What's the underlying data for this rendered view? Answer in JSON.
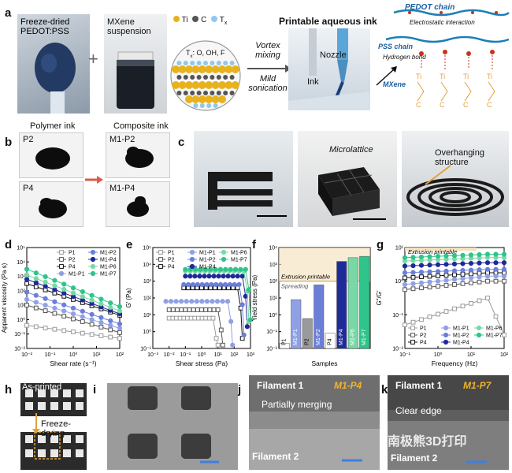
{
  "panel_labels": {
    "a": "a",
    "b": "b",
    "c": "c",
    "d": "d",
    "e": "e",
    "f": "f",
    "g": "g",
    "h": "h",
    "i": "i",
    "j": "j",
    "k": "k"
  },
  "panel_a": {
    "pedot_label": "Freeze-dried\nPEDOT:PSS",
    "plus": "+",
    "mxene_label": "MXene\nsuspension",
    "legend_ti": "Ti",
    "legend_c": "C",
    "legend_tx": "T",
    "legend_tx_sub": "x",
    "tx_caption": "T",
    "tx_caption_sub": "x",
    "tx_caption_rest": ": O, OH, F",
    "vortex": "Vortex\nmixing",
    "mild": "Mild\nsonication",
    "ink_title": "Printable aqueous ink",
    "nozzle": "Nozzle",
    "ink": "Ink",
    "pedot_chain": "PEDOT chain",
    "electrostatic": "Electrostatic interaction",
    "pss_chain": "PSS chain",
    "hbond": "Hydrogen bond",
    "mxene": "MXene"
  },
  "panel_b": {
    "polymer_ink": "Polymer ink",
    "composite_ink": "Composite ink",
    "p2": "P2",
    "p4": "P4",
    "m1p2": "M1-P2",
    "m1p4": "M1-P4"
  },
  "panel_c": {
    "microlattice": "Microlattice",
    "overhang": "Overhanging\nstructure"
  },
  "colors": {
    "p_gray": "#9a9a9a",
    "m1p1": "#8fa0e6",
    "m1p2": "#6b7fd9",
    "m1p4": "#1f2a99",
    "m1p6": "#79d9a6",
    "m1p7": "#2fc48a",
    "black": "#111111",
    "yield_line": "#c8a85a",
    "printable_band": "#f5dfb8"
  },
  "chart_data": [
    {
      "id": "d",
      "type": "line",
      "scale": "log-log",
      "xlabel": "Shear rate (s⁻¹)",
      "ylabel": "Apparent viscosity (Pa s)",
      "xlim": [
        0.01,
        100
      ],
      "ylim": [
        0.01,
        100000
      ],
      "x_ticks": [
        "10⁻²",
        "10⁻¹",
        "10⁰",
        "10¹",
        "10²"
      ],
      "y_ticks": [
        "10⁻²",
        "10⁻¹",
        "10⁰",
        "10¹",
        "10²",
        "10³",
        "10⁴",
        "10⁵"
      ],
      "legend": [
        "P1",
        "P2",
        "P4",
        "M1-P1",
        "M1-P2",
        "M1-P4",
        "M1-P6",
        "M1-P7"
      ],
      "series": [
        {
          "name": "P1",
          "log_start": -0.4,
          "log_end": -1.3
        },
        {
          "name": "P2",
          "log_start": 1.0,
          "log_end": -0.9
        },
        {
          "name": "P4",
          "log_start": 2.5,
          "log_end": 0.3
        },
        {
          "name": "M1-P1",
          "log_start": 1.4,
          "log_end": -0.6
        },
        {
          "name": "M1-P2",
          "log_start": 1.9,
          "log_end": -0.3
        },
        {
          "name": "M1-P4",
          "log_start": 2.8,
          "log_end": 0.4
        },
        {
          "name": "M1-P6",
          "log_start": 3.1,
          "log_end": 0.6
        },
        {
          "name": "M1-P7",
          "log_start": 3.5,
          "log_end": 0.9
        }
      ]
    },
    {
      "id": "e",
      "type": "line",
      "scale": "log-log",
      "xlabel": "Shear stress (Pa)",
      "ylabel": "G′ (Pa)",
      "xlim": [
        0.001,
        1000
      ],
      "ylim": [
        0.1,
        100000
      ],
      "x_ticks": [
        "10⁻³",
        "10⁻²",
        "10⁻¹",
        "10⁰",
        "10¹",
        "10²",
        "10³"
      ],
      "y_ticks": [
        "10⁻¹",
        "10⁰",
        "10¹",
        "10²",
        "10³",
        "10⁴",
        "10⁵"
      ],
      "legend": [
        "P1",
        "P2",
        "P4",
        "M1-P1",
        "M1-P2",
        "M1-P4",
        "M1-P6",
        "M1-P7"
      ],
      "series": [
        {
          "name": "P1",
          "log_plateau": 0.8,
          "log_start": -2.0,
          "log_break": 0.7
        },
        {
          "name": "P2",
          "log_plateau": 1.3,
          "log_start": -2.0,
          "log_break": 1.0
        },
        {
          "name": "M1-P1",
          "log_plateau": 1.8,
          "log_start": -2.2,
          "log_break": 1.6
        },
        {
          "name": "P4",
          "log_plateau": 2.6,
          "log_start": -1.1,
          "log_break": 2.2
        },
        {
          "name": "M1-P2",
          "log_plateau": 2.8,
          "log_start": -1.1,
          "log_break": 2.3
        },
        {
          "name": "M1-P4",
          "log_plateau": 3.3,
          "log_start": -1.0,
          "log_break": 2.5
        },
        {
          "name": "M1-P6",
          "log_plateau": 3.6,
          "log_start": -1.0,
          "log_break": 2.6
        },
        {
          "name": "M1-P7",
          "log_plateau": 3.7,
          "log_start": -1.0,
          "log_break": 2.7
        }
      ]
    },
    {
      "id": "f",
      "type": "bar",
      "scale": "log",
      "xlabel": "Samples",
      "ylabel": "Yield stress (Pa)",
      "ylim": [
        0.01,
        10000
      ],
      "y_ticks": [
        "10⁻²",
        "10⁻¹",
        "10⁰",
        "10¹",
        "10²",
        "10³",
        "10⁴"
      ],
      "categories": [
        "P1",
        "M1-P1",
        "P2",
        "M1-P2",
        "P4",
        "M1-P4",
        "M1-P6",
        "M1-P7"
      ],
      "values": [
        0.02,
        8,
        0.6,
        60,
        0.08,
        1500,
        2500,
        3000
      ],
      "annotations": {
        "extrusion": "Extrusion printable",
        "spreading": "Spreading",
        "threshold": 100
      }
    },
    {
      "id": "g",
      "type": "line",
      "scale": "log-log",
      "xlabel": "Frequency (Hz)",
      "ylabel": "G″/G′",
      "xlim": [
        0.1,
        100
      ],
      "ylim": [
        0.01,
        10
      ],
      "x_ticks": [
        "10⁻¹",
        "10⁰",
        "10¹",
        "10²"
      ],
      "y_ticks": [
        "10⁻²",
        "10⁻¹",
        "10⁰",
        "10¹"
      ],
      "legend": [
        "P1",
        "P2",
        "P4",
        "M1-P1",
        "M1-P2",
        "M1-P4",
        "M1-P6",
        "M1-P7"
      ],
      "annotation": "Extrusion printable",
      "series": [
        {
          "name": "P1",
          "log_start": -1.3,
          "log_end": -0.5
        },
        {
          "name": "P2",
          "log_start": -0.25,
          "log_end": 0.0
        },
        {
          "name": "P4",
          "log_start": 0.1,
          "log_end": 0.25
        },
        {
          "name": "M1-P1",
          "log_start": -0.1,
          "log_end": 0.15
        },
        {
          "name": "M1-P2",
          "log_start": 0.25,
          "log_end": 0.35
        },
        {
          "name": "M1-P4",
          "log_start": 0.45,
          "log_end": 0.55
        },
        {
          "name": "M1-P6",
          "log_start": 0.6,
          "log_end": 0.7
        },
        {
          "name": "M1-P7",
          "log_start": 0.7,
          "log_end": 0.8
        }
      ]
    }
  ],
  "panel_h": {
    "as_printed": "As-printed",
    "freeze_drying": "Freeze-drying"
  },
  "panel_j": {
    "filament1": "Filament 1",
    "tag": "M1-P4",
    "merging": "Partially merging",
    "filament2": "Filament 2"
  },
  "panel_k": {
    "filament1": "Filament 1",
    "tag": "M1-P7",
    "clear": "Clear edge",
    "filament2": "Filament 2",
    "watermark": "南极熊3D打印"
  }
}
